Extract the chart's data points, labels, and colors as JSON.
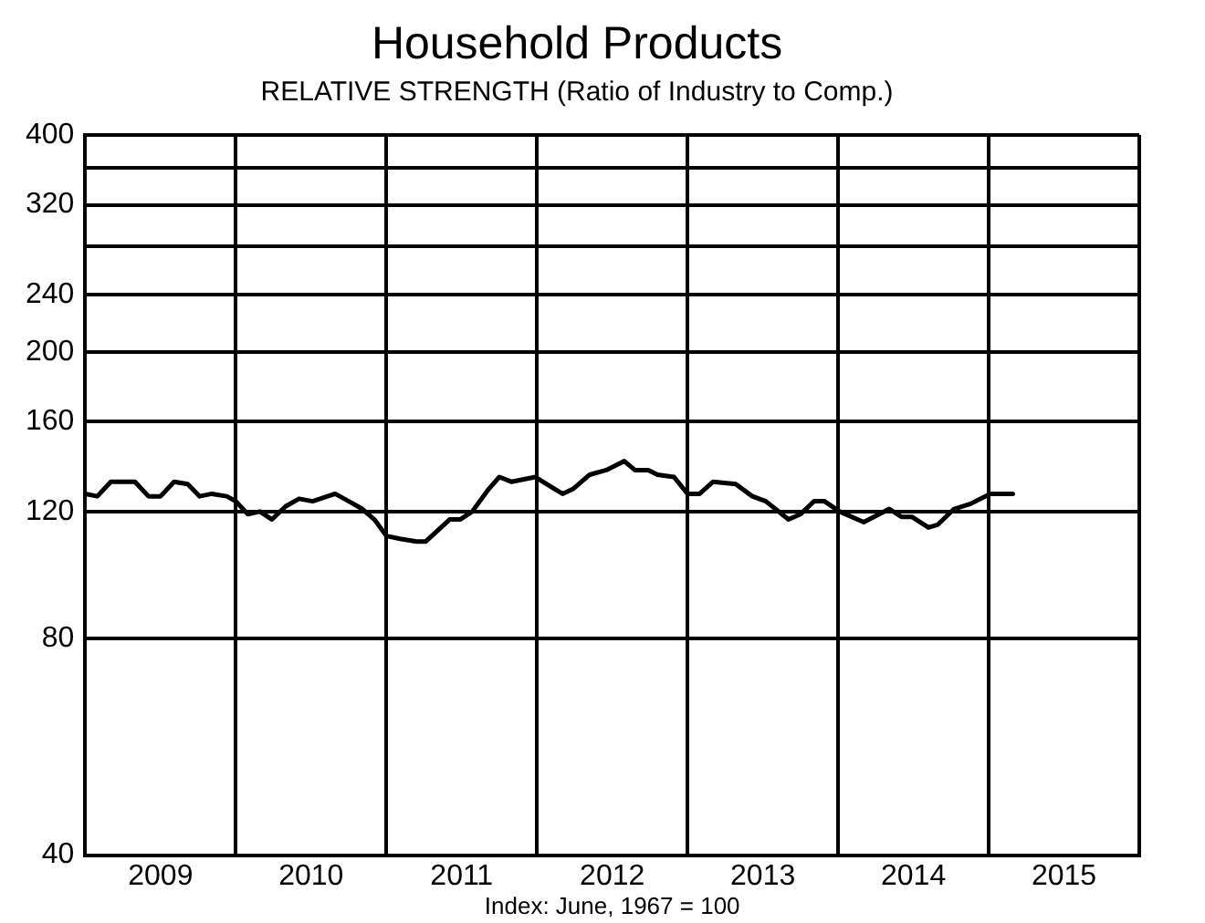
{
  "chart_data": {
    "type": "line",
    "title": "Household Products",
    "subtitle": "RELATIVE STRENGTH (Ratio of Industry to Comp.)",
    "annotations": [
      "Index: June, 1967 = 100"
    ],
    "log": "y",
    "grid": true,
    "legend": false,
    "xlim": [
      2009,
      2016
    ],
    "xticks": [
      {
        "value": 2009,
        "label": null
      },
      {
        "value": 2009.5,
        "label": "2009"
      },
      {
        "value": 2010,
        "label": null
      },
      {
        "value": 2010.5,
        "label": "2010"
      },
      {
        "value": 2011,
        "label": null
      },
      {
        "value": 2011.5,
        "label": "2011"
      },
      {
        "value": 2012,
        "label": null
      },
      {
        "value": 2012.5,
        "label": "2012"
      },
      {
        "value": 2013,
        "label": null
      },
      {
        "value": 2013.5,
        "label": "2013"
      },
      {
        "value": 2014,
        "label": null
      },
      {
        "value": 2014.5,
        "label": "2014"
      },
      {
        "value": 2015,
        "label": null
      },
      {
        "value": 2015.5,
        "label": "2015"
      },
      {
        "value": 2016,
        "label": null
      }
    ],
    "ylim": [
      40,
      400
    ],
    "yticks": [
      40,
      80,
      120,
      160,
      200,
      240,
      {
        "value": 280,
        "label": null
      },
      320,
      {
        "value": 360,
        "label": null
      },
      400
    ],
    "series": [
      {
        "color": "#000000",
        "x": [
          2009,
          2009.08,
          2009.17,
          2009.33,
          2009.42,
          2009.5,
          2009.59,
          2009.68,
          2009.76,
          2009.84,
          2009.94,
          2010,
          2010.08,
          2010.16,
          2010.24,
          2010.33,
          2010.42,
          2010.51,
          2010.66,
          2010.75,
          2010.84,
          2010.92,
          2011,
          2011.09,
          2011.2,
          2011.26,
          2011.42,
          2011.49,
          2011.57,
          2011.68,
          2011.75,
          2011.83,
          2011.99,
          2012.09,
          2012.17,
          2012.24,
          2012.35,
          2012.46,
          2012.58,
          2012.65,
          2012.74,
          2012.8,
          2012.91,
          2013,
          2013.08,
          2013.17,
          2013.32,
          2013.43,
          2013.52,
          2013.67,
          2013.75,
          2013.84,
          2013.91,
          2014.01,
          2014.17,
          2014.34,
          2014.42,
          2014.49,
          2014.6,
          2014.66,
          2014.77,
          2014.88,
          2015.01,
          2015.16
        ],
        "values": [
          127,
          126,
          132,
          132,
          126,
          126,
          132,
          131,
          126,
          127,
          126,
          124,
          119,
          120,
          117,
          122,
          125,
          124,
          127,
          124,
          121,
          117,
          111,
          110,
          109,
          109,
          117,
          117,
          120,
          129,
          134,
          132,
          134,
          130,
          127,
          129,
          135,
          137,
          141,
          137,
          137,
          135,
          134,
          127,
          127,
          132,
          131,
          126,
          124,
          117,
          119,
          124,
          124,
          120,
          116,
          121,
          118,
          118,
          114,
          115,
          121,
          123,
          127,
          127
        ]
      }
    ]
  }
}
